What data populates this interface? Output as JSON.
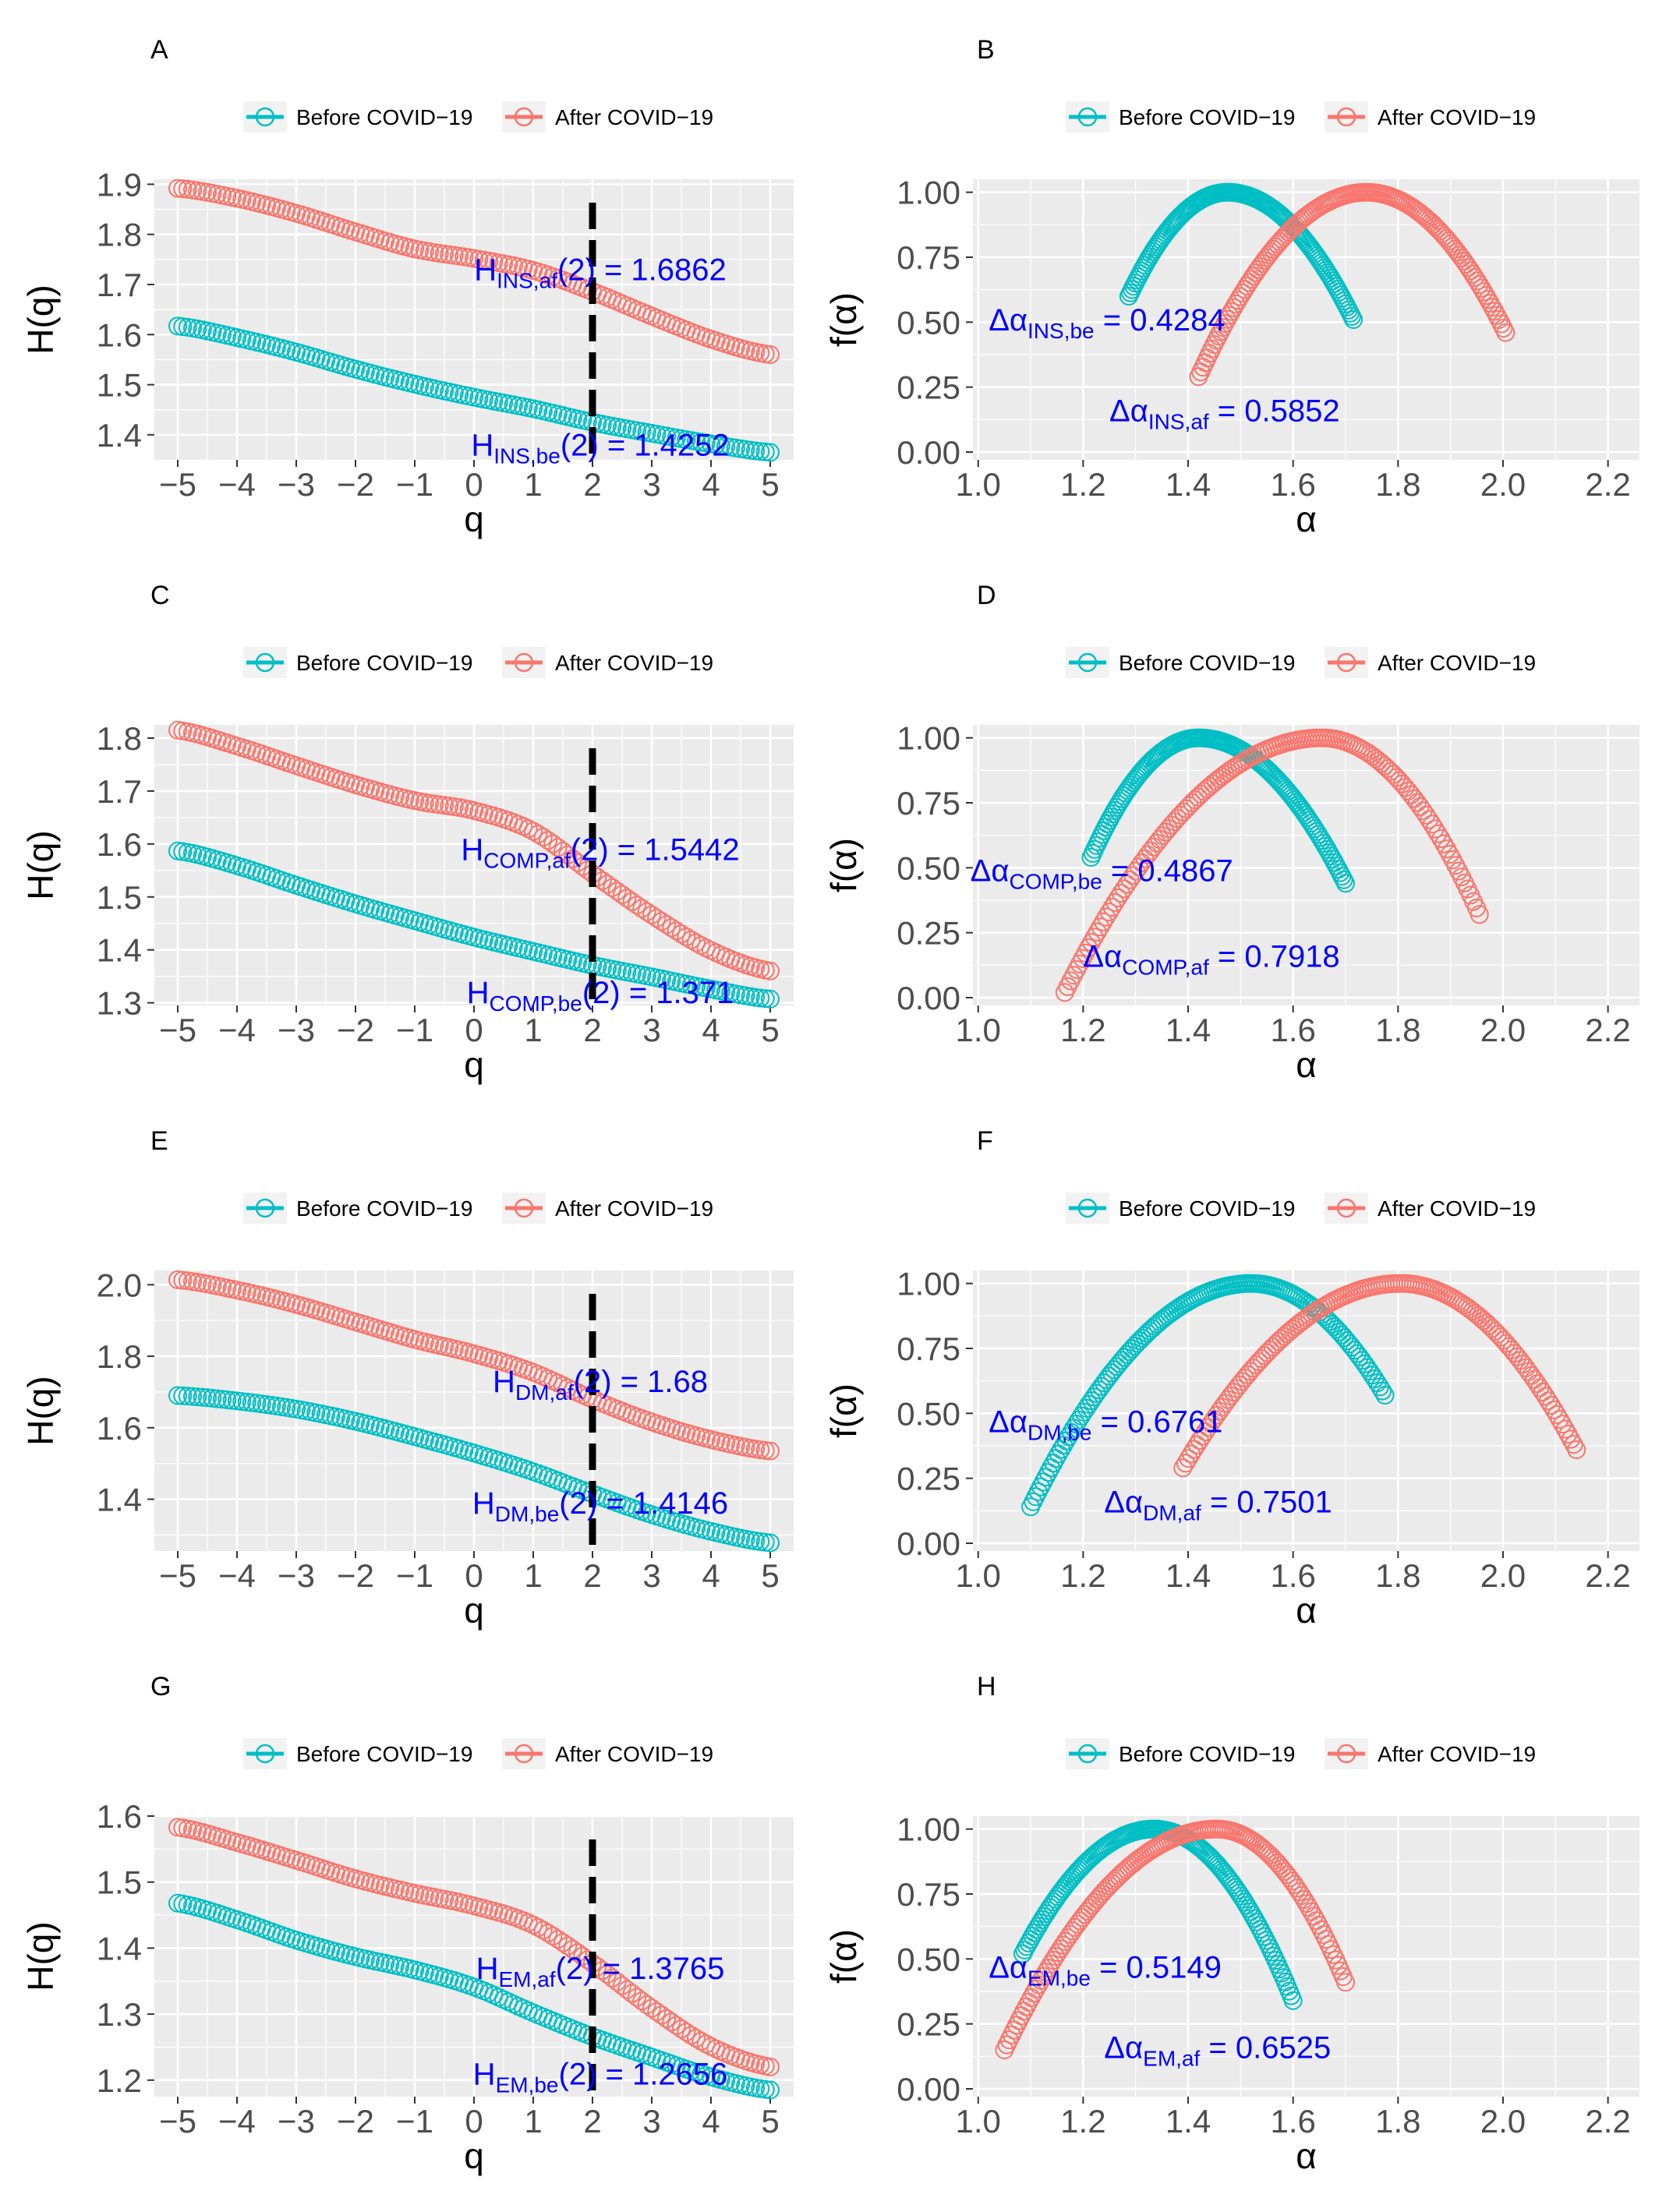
{
  "legend": {
    "before": "Before COVID−19",
    "after": "After COVID−19"
  },
  "colors": {
    "before": "#00BFC4",
    "after": "#F8766D",
    "annotation": "#0000FF",
    "panel_bg": "#EBEBEB",
    "grid": "#FFFFFF",
    "vline": "#000000"
  },
  "chart_data": [
    {
      "id": "A",
      "panel": "A",
      "type": "scatter",
      "x_label": "q",
      "y_label": "H(q)",
      "xlim": [
        -5,
        5
      ],
      "ylim": [
        1.35,
        1.91
      ],
      "x_ticks": [
        -5,
        -4,
        -3,
        -2,
        -1,
        0,
        1,
        2,
        3,
        4,
        5
      ],
      "x_tick_labels": [
        "−5",
        "−4",
        "−3",
        "−2",
        "−1",
        "0",
        "1",
        "2",
        "3",
        "4",
        "5"
      ],
      "y_ticks": [
        1.4,
        1.5,
        1.6,
        1.7,
        1.8,
        1.9
      ],
      "y_tick_labels": [
        "1.4",
        "1.5",
        "1.6",
        "1.7",
        "1.8",
        "1.9"
      ],
      "vline_x": 2,
      "series": [
        {
          "name": "Before COVID−19",
          "x": [
            -5,
            -4,
            -3,
            -2,
            -1,
            0,
            1,
            2,
            3,
            4,
            5
          ],
          "y": [
            1.617,
            1.594,
            1.565,
            1.531,
            1.501,
            1.475,
            1.452,
            1.425,
            1.403,
            1.382,
            1.365
          ]
        },
        {
          "name": "After COVID−19",
          "x": [
            -5,
            -4,
            -3,
            -2,
            -1,
            0,
            1,
            2,
            3,
            4,
            5
          ],
          "y": [
            1.892,
            1.872,
            1.842,
            1.805,
            1.771,
            1.752,
            1.728,
            1.686,
            1.637,
            1.591,
            1.56
          ]
        }
      ],
      "annotations": [
        {
          "main": "H",
          "sub": "INS,af",
          "rest": "(2) = 1.6862",
          "x": 2,
          "y": 1.73
        },
        {
          "main": "H",
          "sub": "INS,be",
          "rest": "(2) = 1.4252",
          "x": 2,
          "y": 1.38
        }
      ]
    },
    {
      "id": "B",
      "panel": "B",
      "type": "scatter",
      "x_label": "α",
      "y_label": "f(α)",
      "xlim": [
        0.99,
        2.26
      ],
      "ylim": [
        -0.03,
        1.05
      ],
      "x_ticks": [
        1.0,
        1.2,
        1.4,
        1.6,
        1.8,
        2.0,
        2.2
      ],
      "x_tick_labels": [
        "1.0",
        "1.2",
        "1.4",
        "1.6",
        "1.8",
        "2.0",
        "2.2"
      ],
      "y_ticks": [
        0,
        0.25,
        0.5,
        0.75,
        1.0
      ],
      "y_tick_labels": [
        "0.00",
        "0.25",
        "0.50",
        "0.75",
        "1.00"
      ],
      "series": [
        {
          "name": "Before COVID−19",
          "alpha_left": 1.287,
          "alpha_peak": 1.475,
          "alpha_right": 1.715,
          "f_left": 0.6,
          "f_right": 0.51
        },
        {
          "name": "After COVID−19",
          "alpha_left": 1.42,
          "alpha_peak": 1.74,
          "alpha_right": 2.005,
          "f_left": 0.29,
          "f_right": 0.46
        }
      ],
      "annotations": [
        {
          "main": "Δα",
          "sub": "INS,be",
          "rest": " = 0.4284",
          "x": 1.02,
          "y": 0.51
        },
        {
          "main": "Δα",
          "sub": "INS,af",
          "rest": " = 0.5852",
          "x": 1.25,
          "y": 0.16
        }
      ]
    },
    {
      "id": "C",
      "panel": "C",
      "type": "scatter",
      "x_label": "q",
      "y_label": "H(q)",
      "xlim": [
        -5,
        5
      ],
      "ylim": [
        1.295,
        1.825
      ],
      "x_ticks": [
        -5,
        -4,
        -3,
        -2,
        -1,
        0,
        1,
        2,
        3,
        4,
        5
      ],
      "x_tick_labels": [
        "−5",
        "−4",
        "−3",
        "−2",
        "−1",
        "0",
        "1",
        "2",
        "3",
        "4",
        "5"
      ],
      "y_ticks": [
        1.3,
        1.4,
        1.5,
        1.6,
        1.7,
        1.8
      ],
      "y_tick_labels": [
        "1.3",
        "1.4",
        "1.5",
        "1.6",
        "1.7",
        "1.8"
      ],
      "vline_x": 2,
      "series": [
        {
          "name": "Before COVID−19",
          "x": [
            -5,
            -4,
            -3,
            -2,
            -1,
            0,
            1,
            2,
            3,
            4,
            5
          ],
          "y": [
            1.587,
            1.559,
            1.522,
            1.487,
            1.455,
            1.424,
            1.397,
            1.371,
            1.349,
            1.326,
            1.307
          ]
        },
        {
          "name": "After COVID−19",
          "x": [
            -5,
            -4,
            -3,
            -2,
            -1,
            0,
            1,
            2,
            3,
            4,
            5
          ],
          "y": [
            1.815,
            1.785,
            1.748,
            1.712,
            1.682,
            1.663,
            1.624,
            1.544,
            1.466,
            1.399,
            1.36
          ]
        }
      ],
      "annotations": [
        {
          "main": "H",
          "sub": "COMP,af",
          "rest": "(2) = 1.5442",
          "x": 2,
          "y": 1.59
        },
        {
          "main": "H",
          "sub": "COMP,be",
          "rest": "(2) = 1.371",
          "x": 2,
          "y": 1.32
        }
      ]
    },
    {
      "id": "D",
      "panel": "D",
      "type": "scatter",
      "x_label": "α",
      "y_label": "f(α)",
      "xlim": [
        0.99,
        2.26
      ],
      "ylim": [
        -0.03,
        1.05
      ],
      "x_ticks": [
        1.0,
        1.2,
        1.4,
        1.6,
        1.8,
        2.0,
        2.2
      ],
      "x_tick_labels": [
        "1.0",
        "1.2",
        "1.4",
        "1.6",
        "1.8",
        "2.0",
        "2.2"
      ],
      "y_ticks": [
        0,
        0.25,
        0.5,
        0.75,
        1.0
      ],
      "y_tick_labels": [
        "0.00",
        "0.25",
        "0.50",
        "0.75",
        "1.00"
      ],
      "series": [
        {
          "name": "Before COVID−19",
          "alpha_left": 1.215,
          "alpha_peak": 1.42,
          "alpha_right": 1.7,
          "f_left": 0.54,
          "f_right": 0.44
        },
        {
          "name": "After COVID−19",
          "alpha_left": 1.165,
          "alpha_peak": 1.655,
          "alpha_right": 1.955,
          "f_left": 0.02,
          "f_right": 0.32
        }
      ],
      "annotations": [
        {
          "main": "Δα",
          "sub": "COMP,be",
          "rest": " = 0.4867",
          "x": 0.985,
          "y": 0.49
        },
        {
          "main": "Δα",
          "sub": "COMP,af",
          "rest": " = 0.7918",
          "x": 1.2,
          "y": 0.16
        }
      ]
    },
    {
      "id": "E",
      "panel": "E",
      "type": "scatter",
      "x_label": "q",
      "y_label": "H(q)",
      "xlim": [
        -5,
        5
      ],
      "ylim": [
        1.255,
        2.04
      ],
      "x_ticks": [
        -5,
        -4,
        -3,
        -2,
        -1,
        0,
        1,
        2,
        3,
        4,
        5
      ],
      "x_tick_labels": [
        "−5",
        "−4",
        "−3",
        "−2",
        "−1",
        "0",
        "1",
        "2",
        "3",
        "4",
        "5"
      ],
      "y_ticks": [
        1.4,
        1.6,
        1.8,
        2.0
      ],
      "y_tick_labels": [
        "1.4",
        "1.6",
        "1.8",
        "2.0"
      ],
      "vline_x": 2,
      "series": [
        {
          "name": "Before COVID−19",
          "x": [
            -5,
            -4,
            -3,
            -2,
            -1,
            0,
            1,
            2,
            3,
            4,
            5
          ],
          "y": [
            1.69,
            1.675,
            1.652,
            1.618,
            1.575,
            1.529,
            1.477,
            1.415,
            1.357,
            1.31,
            1.278
          ]
        },
        {
          "name": "After COVID−19",
          "x": [
            -5,
            -4,
            -3,
            -2,
            -1,
            0,
            1,
            2,
            3,
            4,
            5
          ],
          "y": [
            2.014,
            1.985,
            1.945,
            1.896,
            1.847,
            1.807,
            1.755,
            1.68,
            1.616,
            1.567,
            1.535
          ]
        }
      ],
      "annotations": [
        {
          "main": "H",
          "sub": "DM,af",
          "rest": "(2) = 1.68",
          "x": 2,
          "y": 1.73
        },
        {
          "main": "H",
          "sub": "DM,be",
          "rest": "(2) = 1.4146",
          "x": 2,
          "y": 1.39
        }
      ]
    },
    {
      "id": "F",
      "panel": "F",
      "type": "scatter",
      "x_label": "α",
      "y_label": "f(α)",
      "xlim": [
        0.99,
        2.26
      ],
      "ylim": [
        -0.03,
        1.05
      ],
      "x_ticks": [
        1.0,
        1.2,
        1.4,
        1.6,
        1.8,
        2.0,
        2.2
      ],
      "x_tick_labels": [
        "1.0",
        "1.2",
        "1.4",
        "1.6",
        "1.8",
        "2.0",
        "2.2"
      ],
      "y_ticks": [
        0,
        0.25,
        0.5,
        0.75,
        1.0
      ],
      "y_tick_labels": [
        "0.00",
        "0.25",
        "0.50",
        "0.75",
        "1.00"
      ],
      "series": [
        {
          "name": "Before COVID−19",
          "alpha_left": 1.1,
          "alpha_peak": 1.52,
          "alpha_right": 1.775,
          "f_left": 0.14,
          "f_right": 0.57
        },
        {
          "name": "After COVID−19",
          "alpha_left": 1.39,
          "alpha_peak": 1.805,
          "alpha_right": 2.14,
          "f_left": 0.29,
          "f_right": 0.36
        }
      ],
      "annotations": [
        {
          "main": "Δα",
          "sub": "DM,be",
          "rest": " = 0.6761",
          "x": 1.02,
          "y": 0.47
        },
        {
          "main": "Δα",
          "sub": "DM,af",
          "rest": " = 0.7501",
          "x": 1.24,
          "y": 0.16
        }
      ]
    },
    {
      "id": "G",
      "panel": "G",
      "type": "scatter",
      "x_label": "q",
      "y_label": "H(q)",
      "xlim": [
        -5,
        5
      ],
      "ylim": [
        1.175,
        1.6
      ],
      "x_ticks": [
        -5,
        -4,
        -3,
        -2,
        -1,
        0,
        1,
        2,
        3,
        4,
        5
      ],
      "x_tick_labels": [
        "−5",
        "−4",
        "−3",
        "−2",
        "−1",
        "0",
        "1",
        "2",
        "3",
        "4",
        "5"
      ],
      "y_ticks": [
        1.2,
        1.3,
        1.4,
        1.5,
        1.6
      ],
      "y_tick_labels": [
        "1.2",
        "1.3",
        "1.4",
        "1.5",
        "1.6"
      ],
      "vline_x": 2,
      "series": [
        {
          "name": "Before COVID−19",
          "x": [
            -5,
            -4,
            -3,
            -2,
            -1,
            0,
            1,
            2,
            3,
            4,
            5
          ],
          "y": [
            1.468,
            1.443,
            1.412,
            1.387,
            1.367,
            1.341,
            1.302,
            1.266,
            1.235,
            1.205,
            1.185
          ]
        },
        {
          "name": "After COVID−19",
          "x": [
            -5,
            -4,
            -3,
            -2,
            -1,
            0,
            1,
            2,
            3,
            4,
            5
          ],
          "y": [
            1.583,
            1.56,
            1.533,
            1.505,
            1.483,
            1.464,
            1.435,
            1.377,
            1.309,
            1.251,
            1.22
          ]
        }
      ],
      "annotations": [
        {
          "main": "H",
          "sub": "EM,af",
          "rest": "(2) = 1.3765",
          "x": 2,
          "y": 1.37
        },
        {
          "main": "H",
          "sub": "EM,be",
          "rest": "(2) = 1.2656",
          "x": 2,
          "y": 1.21
        }
      ]
    },
    {
      "id": "H",
      "panel": "H",
      "type": "scatter",
      "x_label": "α",
      "y_label": "f(α)",
      "xlim": [
        0.99,
        2.26
      ],
      "ylim": [
        -0.03,
        1.05
      ],
      "x_ticks": [
        1.0,
        1.2,
        1.4,
        1.6,
        1.8,
        2.0,
        2.2
      ],
      "x_tick_labels": [
        "1.0",
        "1.2",
        "1.4",
        "1.6",
        "1.8",
        "2.0",
        "2.2"
      ],
      "y_ticks": [
        0,
        0.25,
        0.5,
        0.75,
        1.0
      ],
      "y_tick_labels": [
        "0.00",
        "0.25",
        "0.50",
        "0.75",
        "1.00"
      ],
      "series": [
        {
          "name": "Before COVID−19",
          "alpha_left": 1.085,
          "alpha_peak": 1.335,
          "alpha_right": 1.6,
          "f_left": 0.52,
          "f_right": 0.34
        },
        {
          "name": "After COVID−19",
          "alpha_left": 1.05,
          "alpha_peak": 1.455,
          "alpha_right": 1.7,
          "f_left": 0.15,
          "f_right": 0.41
        }
      ],
      "annotations": [
        {
          "main": "Δα",
          "sub": "EM,be",
          "rest": " = 0.5149",
          "x": 1.02,
          "y": 0.47
        },
        {
          "main": "Δα",
          "sub": "EM,af",
          "rest": " = 0.6525",
          "x": 1.24,
          "y": 0.16
        }
      ]
    }
  ]
}
